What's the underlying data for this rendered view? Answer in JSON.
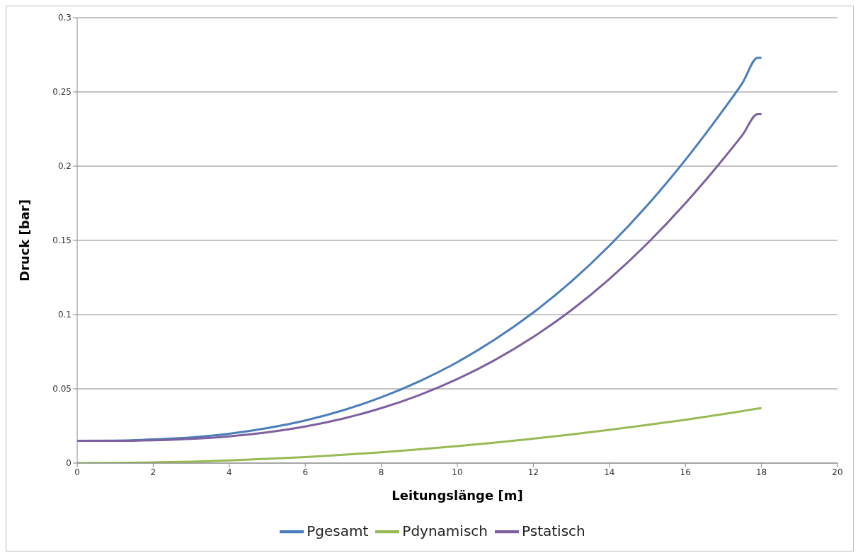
{
  "chart_data": {
    "type": "line",
    "xlabel": "Leitungslänge  [m]",
    "ylabel": "Druck [bar]",
    "x": [
      0,
      1,
      2,
      3,
      4,
      5,
      6,
      7,
      8,
      9,
      10,
      11,
      12,
      13,
      14,
      15,
      16,
      17,
      17.5,
      17.9,
      18
    ],
    "series": [
      {
        "name": "Pgesamt",
        "color": "#4a7ebb",
        "values": [
          0.015,
          0.0151,
          0.0159,
          0.0173,
          0.0198,
          0.0236,
          0.0287,
          0.0356,
          0.0443,
          0.0551,
          0.068,
          0.0834,
          0.1014,
          0.1223,
          0.1464,
          0.1737,
          0.2042,
          0.238,
          0.256,
          0.273,
          0.273
        ]
      },
      {
        "name": "Pdynamisch",
        "color": "#98b954",
        "values": [
          0,
          0.0001,
          0.0005,
          0.001,
          0.0018,
          0.0029,
          0.0041,
          0.0056,
          0.0073,
          0.0093,
          0.0114,
          0.0138,
          0.0164,
          0.0193,
          0.0224,
          0.0257,
          0.0292,
          0.033,
          0.035,
          0.0367,
          0.037
        ]
      },
      {
        "name": "Pstatisch",
        "color": "#7d60a0",
        "values": [
          0.015,
          0.015,
          0.0154,
          0.0163,
          0.018,
          0.0207,
          0.0246,
          0.03,
          0.037,
          0.0458,
          0.0566,
          0.0696,
          0.085,
          0.103,
          0.124,
          0.148,
          0.175,
          0.205,
          0.221,
          0.235,
          0.235
        ]
      }
    ],
    "xlim": [
      0,
      20
    ],
    "xticks": [
      0,
      2,
      4,
      6,
      8,
      10,
      12,
      14,
      16,
      18,
      20
    ],
    "ylim": [
      0,
      0.3
    ],
    "yticks": [
      0,
      0.05,
      0.1,
      0.15,
      0.2,
      0.25,
      0.3
    ],
    "grid": "y",
    "legend": "bottom",
    "marker": "none",
    "line_style": "solid"
  }
}
